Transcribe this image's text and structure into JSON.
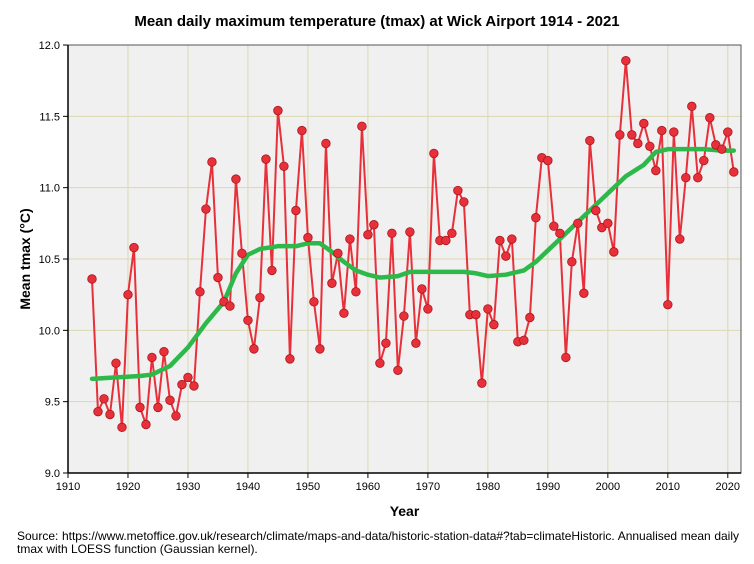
{
  "chart_data": {
    "type": "line",
    "title": "Mean daily maximum temperature (tmax) at Wick Airport 1914 - 2021",
    "xlabel": "Year",
    "ylabel": "Mean tmax (°C)",
    "xlim": [
      1910,
      2022.2
    ],
    "ylim": [
      9.0,
      12.0
    ],
    "xticks": [
      1910,
      1920,
      1930,
      1940,
      1950,
      1960,
      1970,
      1980,
      1990,
      2000,
      2010,
      2020
    ],
    "yticks": [
      "9.0",
      "9.5",
      "10.0",
      "10.5",
      "11.0",
      "11.5",
      "12.0"
    ],
    "grid": true,
    "series": [
      {
        "name": "Annualised mean daily tmax",
        "color": "#e8303a",
        "x_start": 1914,
        "values": [
          10.36,
          9.43,
          9.52,
          9.41,
          9.77,
          9.32,
          10.25,
          10.58,
          9.46,
          9.34,
          9.81,
          9.46,
          9.85,
          9.51,
          9.4,
          9.62,
          9.67,
          9.61,
          10.27,
          10.85,
          11.18,
          10.37,
          10.2,
          10.17,
          11.06,
          10.54,
          10.07,
          9.87,
          10.23,
          11.2,
          10.42,
          11.54,
          11.15,
          9.8,
          10.84,
          11.4,
          10.65,
          10.2,
          9.87,
          11.31,
          10.33,
          10.54,
          10.12,
          10.64,
          10.27,
          11.43,
          10.67,
          10.74,
          9.77,
          9.91,
          10.68,
          9.72,
          10.1,
          10.69,
          9.91,
          10.29,
          10.15,
          11.24,
          10.63,
          10.63,
          10.68,
          10.98,
          10.9,
          10.11,
          10.11,
          9.63,
          10.15,
          10.04,
          10.63,
          10.52,
          10.64,
          9.92,
          9.93,
          10.09,
          10.79,
          11.21,
          11.19,
          10.73,
          10.68,
          9.81,
          10.48,
          10.75,
          10.26,
          11.33,
          10.84,
          10.72,
          10.75,
          10.55,
          11.37,
          11.89,
          11.37,
          11.31,
          11.45,
          11.29,
          11.12,
          11.4,
          10.18,
          11.39,
          10.64,
          11.07,
          11.57,
          11.07,
          11.19,
          11.49,
          11.3,
          11.27,
          11.39,
          11.11
        ]
      },
      {
        "name": "LOESS (Gaussian kernel)",
        "color": "#2db84a",
        "x": [
          1914,
          1918,
          1922,
          1924,
          1927,
          1930,
          1933,
          1936,
          1938,
          1940,
          1942,
          1945,
          1948,
          1950,
          1952,
          1954,
          1956,
          1958,
          1960,
          1962,
          1965,
          1967,
          1970,
          1973,
          1976,
          1978,
          1980,
          1983,
          1986,
          1988,
          1990,
          1993,
          1995,
          1997,
          2000,
          2003,
          2006,
          2008,
          2010,
          2013,
          2016,
          2019,
          2021
        ],
        "values": [
          9.66,
          9.67,
          9.68,
          9.69,
          9.75,
          9.88,
          10.05,
          10.2,
          10.4,
          10.53,
          10.57,
          10.59,
          10.59,
          10.61,
          10.61,
          10.55,
          10.48,
          10.42,
          10.39,
          10.37,
          10.38,
          10.41,
          10.41,
          10.41,
          10.41,
          10.4,
          10.38,
          10.39,
          10.42,
          10.48,
          10.56,
          10.68,
          10.76,
          10.84,
          10.96,
          11.08,
          11.16,
          11.25,
          11.27,
          11.27,
          11.27,
          11.26,
          11.26
        ]
      }
    ],
    "source_note": "Source: https://www.metoffice.gov.uk/research/climate/maps-and-data/historic-station-data#?tab=climateHistoric. Annualised mean daily tmax with LOESS function (Gaussian kernel)."
  }
}
